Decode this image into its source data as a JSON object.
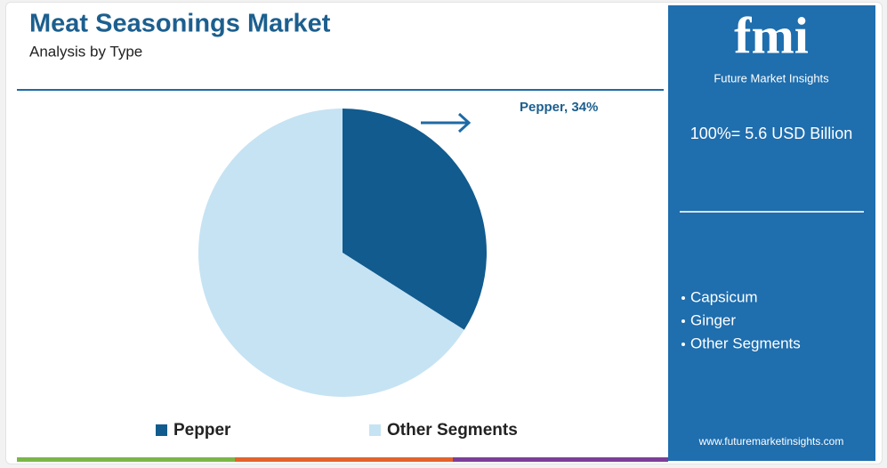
{
  "chart_data": {
    "type": "pie",
    "title": "Meat Seasonings Market",
    "subtitle": "Analysis by Type",
    "categories": [
      "Pepper",
      "Other Segments"
    ],
    "values": [
      34,
      66
    ],
    "value_labels": [
      "Pepper, 34%",
      null
    ],
    "colors": [
      "#115b8e",
      "#c6e3f3"
    ]
  },
  "brand": {
    "logo": "fmi",
    "name": "Future Market Insights",
    "url": "www.futuremarketinsights.com"
  },
  "side_panel": {
    "total": "100%= 5.6 USD Billion",
    "segments": [
      "Capsicum",
      "Ginger",
      "Other Segments"
    ]
  }
}
